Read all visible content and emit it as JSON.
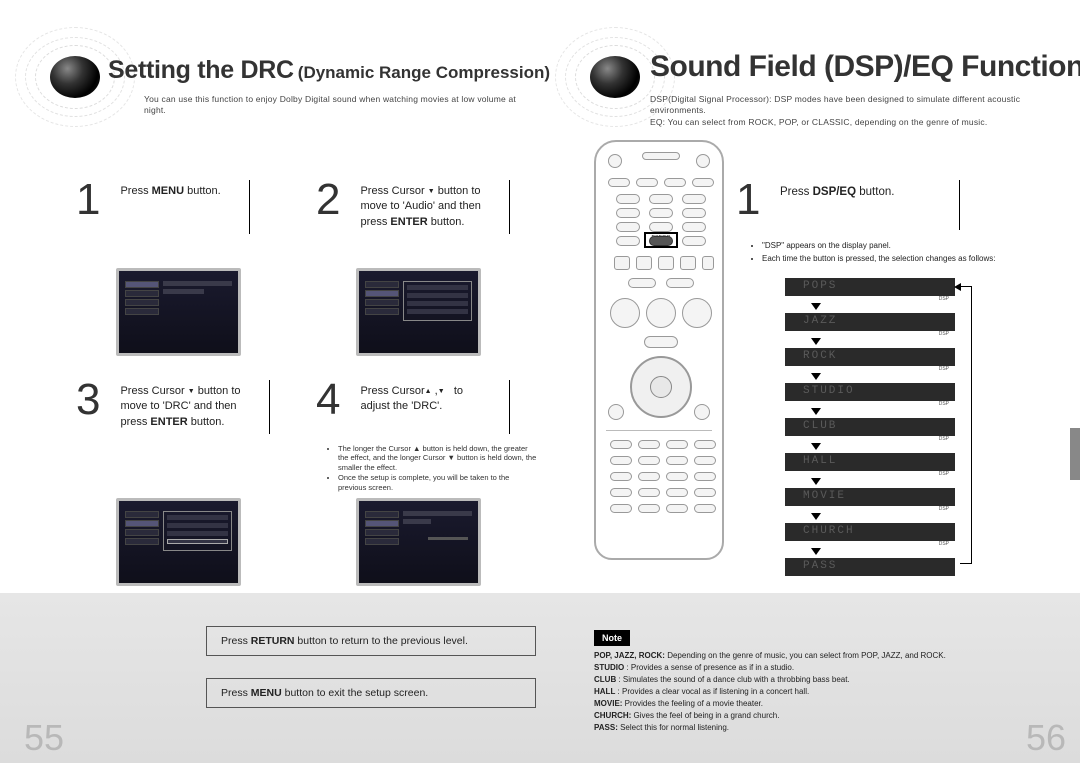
{
  "left": {
    "title_main": "Setting the DRC",
    "title_sub": "(Dynamic Range Compression)",
    "intro": "You can use this function to enjoy Dolby Digital sound when watching movies at low volume at night.",
    "steps": {
      "s1": {
        "num": "1",
        "text_pre": "Press ",
        "bold": "MENU",
        "text_post": " button."
      },
      "s2": {
        "num": "2",
        "line1_pre": "Press Cursor ",
        "line1_post": " button to",
        "line2": "move to 'Audio' and then",
        "line3_pre": "press ",
        "line3_bold": "ENTER",
        "line3_post": " button."
      },
      "s3": {
        "num": "3",
        "line1_pre": "Press Cursor ",
        "line1_post": " button to",
        "line2": "move to 'DRC' and then",
        "line3_pre": "press ",
        "line3_bold": "ENTER",
        "line3_post": " button."
      },
      "s4": {
        "num": "4",
        "line1_pre": "Press Cursor",
        "line1_post": " to",
        "line2": "adjust the 'DRC'."
      },
      "s4_notes": [
        "The longer the Cursor ▲ button is held down, the greater the effect, and the longer Cursor ▼ button is held down, the smaller the effect.",
        "Once the setup is complete, you will be taken to the previous screen."
      ]
    },
    "bottom_box1_pre": "Press ",
    "bottom_box1_bold": "RETURN",
    "bottom_box1_post": " button to return to the previous level.",
    "bottom_box2_pre": "Press ",
    "bottom_box2_bold": "MENU",
    "bottom_box2_post": " button to exit the setup screen.",
    "page_num": "55"
  },
  "right": {
    "title": "Sound Field (DSP)/EQ Function",
    "intro": "DSP(Digital Signal Processor): DSP modes have been designed to simulate different acoustic environments.\nEQ: You can select from ROCK, POP, or CLASSIC, depending on the genre of music.",
    "step1_num": "1",
    "step1_pre": "Press ",
    "step1_bold": "DSP/EQ",
    "step1_post": " button.",
    "bullets": [
      "\"DSP\" appears on the display panel.",
      "Each time the button is pressed, the selection changes as follows:"
    ],
    "modes": [
      "POPS",
      "JAZZ",
      "ROCK",
      "STUDIO",
      "CLUB",
      "HALL",
      "MOVIE",
      "CHURCH",
      "PASS"
    ],
    "dsp_label": "DSP",
    "remote_highlight": "DSP/EQ",
    "note_tag": "Note",
    "notes": [
      {
        "b": "POP, JAZZ, ROCK:",
        "t": " Depending on the genre of music, you can select from POP, JAZZ, and ROCK."
      },
      {
        "b": "STUDIO",
        "t": " : Provides a sense of presence as if in a studio."
      },
      {
        "b": "CLUB",
        "t": " : Simulates the sound of a dance club with a throbbing bass beat."
      },
      {
        "b": "HALL",
        "t": " : Provides a clear vocal as if listening in a concert hall."
      },
      {
        "b": "MOVIE:",
        "t": " Provides the feeling of a movie theater."
      },
      {
        "b": "CHURCH:",
        "t": " Gives the feel of being in a grand church."
      },
      {
        "b": "PASS:",
        "t": " Select this for normal listening."
      }
    ],
    "page_num": "56"
  },
  "colors": {
    "bottom_bg": "#e0e0e0",
    "mode_bg": "#2a2a2a",
    "mode_text": "#5a5a5a"
  }
}
